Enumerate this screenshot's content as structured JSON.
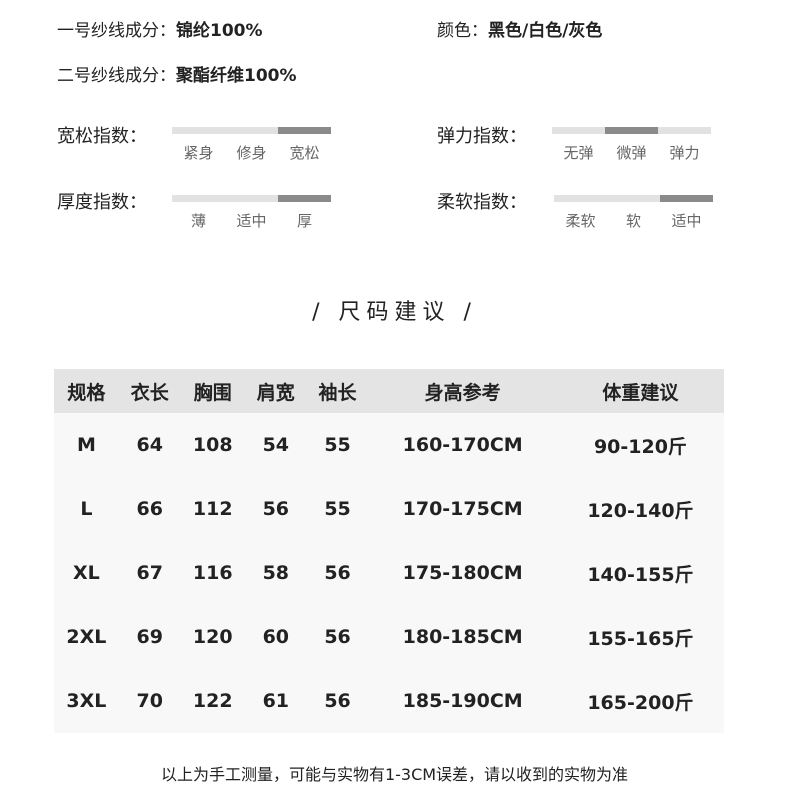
{
  "specs": [
    {
      "label": "一号纱线成分：",
      "value": "锦纶100%"
    },
    {
      "label": "颜色：",
      "value": "黑色/白色/灰色"
    },
    {
      "label": "二号纱线成分：",
      "value": "聚酯纤维100%"
    }
  ],
  "indices": [
    {
      "label": "宽松指数：",
      "options": [
        "紧身",
        "修身",
        "宽松"
      ],
      "selected": 2
    },
    {
      "label": "弹力指数：",
      "options": [
        "无弹",
        "微弹",
        "弹力"
      ],
      "selected": 1
    },
    {
      "label": "厚度指数：",
      "options": [
        "薄",
        "适中",
        "厚"
      ],
      "selected": 2
    },
    {
      "label": "柔软指数：",
      "options": [
        "柔软",
        "软",
        "适中"
      ],
      "selected": 2
    }
  ],
  "colors": {
    "bar_on": "#8a8a8a",
    "bar_off": "#e2e2e2",
    "header_bg": "#e4e4e4"
  },
  "size_title": "/ 尺码建议 /",
  "table": {
    "headers": [
      "规格",
      "衣长",
      "胸围",
      "肩宽",
      "袖长",
      "身高参考",
      "体重建议"
    ],
    "rows": [
      [
        "M",
        "64",
        "108",
        "54",
        "55",
        "160-170CM",
        "90-120斤"
      ],
      [
        "L",
        "66",
        "112",
        "56",
        "55",
        "170-175CM",
        "120-140斤"
      ],
      [
        "XL",
        "67",
        "116",
        "58",
        "56",
        "175-180CM",
        "140-155斤"
      ],
      [
        "2XL",
        "69",
        "120",
        "60",
        "56",
        "180-185CM",
        "155-165斤"
      ],
      [
        "3XL",
        "70",
        "122",
        "61",
        "56",
        "185-190CM",
        "165-200斤"
      ]
    ]
  },
  "note": "以上为手工测量，可能与实物有1-3CM误差，请以收到的实物为准"
}
